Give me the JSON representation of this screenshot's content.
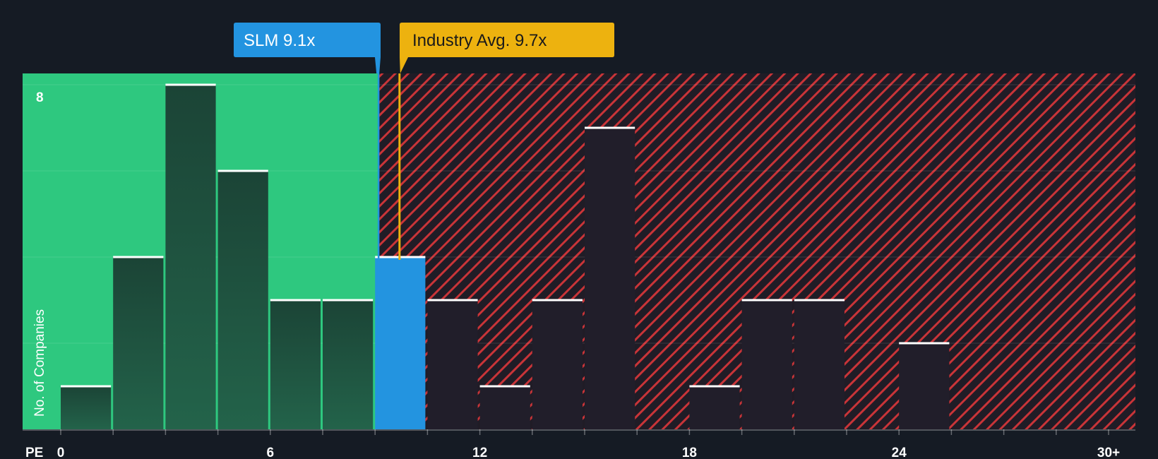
{
  "chart_data": {
    "type": "bar",
    "xlabel": "PE",
    "ylabel": "No. of Companies",
    "x_ticks": [
      "0",
      "6",
      "12",
      "18",
      "24",
      "30+"
    ],
    "y_ticks": [
      "8"
    ],
    "bin_width": 1.5,
    "xlim": [
      0,
      30
    ],
    "ylim": [
      0,
      8
    ],
    "bins": [
      {
        "x": 0.0,
        "count": 1
      },
      {
        "x": 1.5,
        "count": 4
      },
      {
        "x": 3.0,
        "count": 8
      },
      {
        "x": 4.5,
        "count": 6
      },
      {
        "x": 6.0,
        "count": 3
      },
      {
        "x": 7.5,
        "count": 3
      },
      {
        "x": 9.0,
        "count": 4,
        "highlight": true
      },
      {
        "x": 10.5,
        "count": 3
      },
      {
        "x": 12.0,
        "count": 1
      },
      {
        "x": 13.5,
        "count": 3
      },
      {
        "x": 15.0,
        "count": 7
      },
      {
        "x": 16.5,
        "count": 0
      },
      {
        "x": 18.0,
        "count": 1
      },
      {
        "x": 19.5,
        "count": 3
      },
      {
        "x": 21.0,
        "count": 3
      },
      {
        "x": 22.5,
        "count": 0
      },
      {
        "x": 24.0,
        "count": 2
      },
      {
        "x": 25.5,
        "count": 0
      },
      {
        "x": 27.0,
        "count": 0
      },
      {
        "x": 28.5,
        "count": 0
      }
    ],
    "company": {
      "label": "SLM 9.1x",
      "value": 9.1
    },
    "industry": {
      "label": "Industry Avg. 9.7x",
      "value": 9.7
    },
    "colors": {
      "background": "#151b24",
      "undervalued_zone": "#2ec87f",
      "overvalued_hatch": "#d9363e",
      "company": "#2394e0",
      "industry": "#edb20f",
      "bar_dark_green": "#1e4a3a",
      "bar_dark_red": "#211e2a"
    }
  }
}
